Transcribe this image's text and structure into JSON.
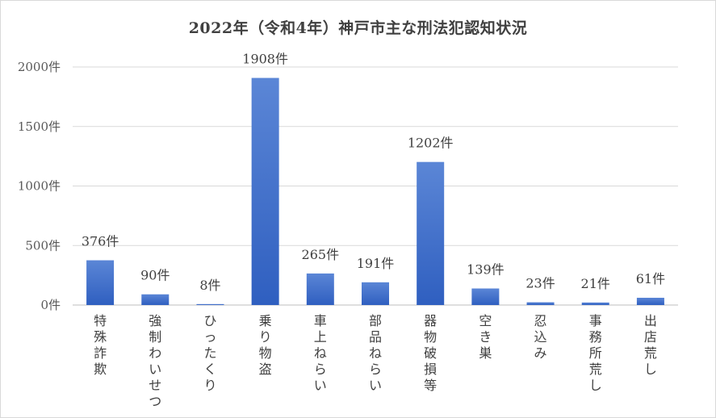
{
  "chart_data": {
    "type": "bar",
    "title": "2022年（令和4年）神戸市主な刑法犯認知状況",
    "xlabel": "",
    "ylabel": "",
    "ylim": [
      0,
      2000
    ],
    "yticks": [
      {
        "value": 0,
        "label": "0件"
      },
      {
        "value": 500,
        "label": "500件"
      },
      {
        "value": 1000,
        "label": "1000件"
      },
      {
        "value": 1500,
        "label": "1500件"
      },
      {
        "value": 2000,
        "label": "2000件"
      }
    ],
    "grid": true,
    "bar_color": "#4472c4",
    "categories": [
      "特殊詐欺",
      "強制わいせつ",
      "ひったくり",
      "乗り物盗",
      "車上ねらい",
      "部品ねらい",
      "器物破損等",
      "空き巣",
      "忍込み",
      "事務所荒し",
      "出店荒し"
    ],
    "values": [
      376,
      90,
      8,
      1908,
      265,
      191,
      1202,
      139,
      23,
      21,
      61
    ],
    "data_labels": [
      "376件",
      "90件",
      "8件",
      "1908件",
      "265件",
      "191件",
      "1202件",
      "139件",
      "23件",
      "21件",
      "61件"
    ]
  }
}
